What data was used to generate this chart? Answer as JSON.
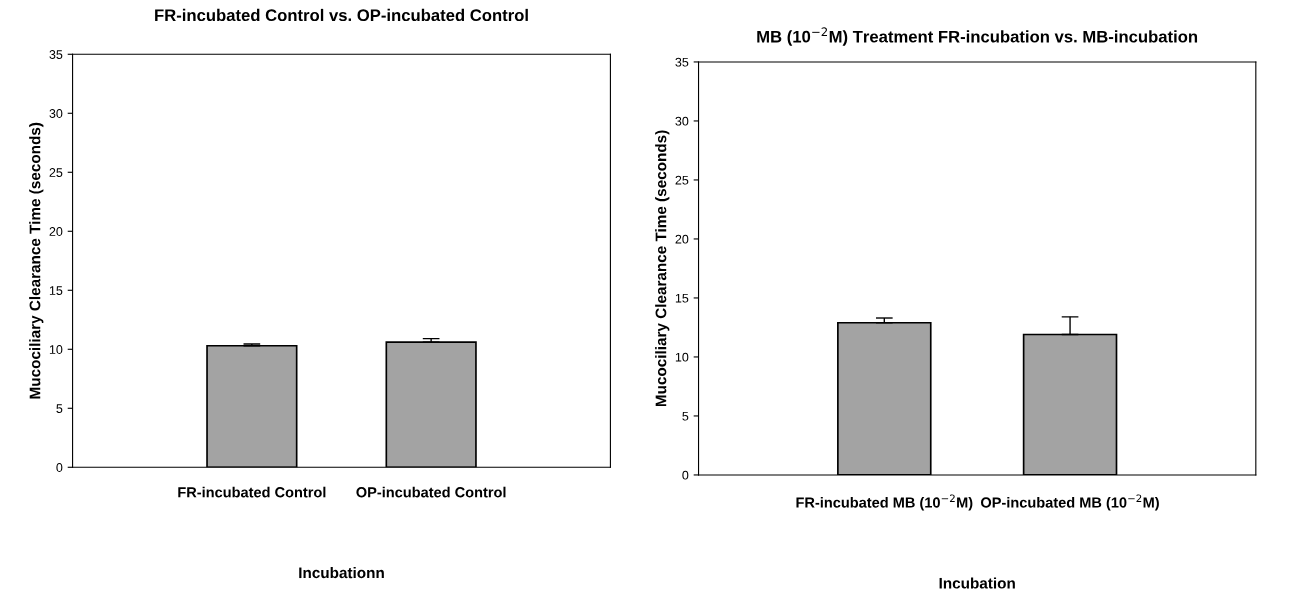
{
  "chart_data": [
    {
      "type": "bar",
      "title": "FR-incubated Control vs. OP-incubated Control",
      "xlabel": "Incubationn",
      "ylabel": "Mucociliary Clearance Time (seconds)",
      "categories": [
        "FR-incubated Control",
        "OP-incubated Control"
      ],
      "values": [
        10.3,
        10.6
      ],
      "errors": [
        [
          10.3,
          10.45
        ],
        [
          10.6,
          10.9
        ]
      ],
      "color": "#a3a3a3",
      "ylim": [
        0,
        35
      ],
      "yticks": [
        0,
        5,
        10,
        15,
        20,
        25,
        30,
        35
      ],
      "grid": false
    },
    {
      "type": "bar",
      "title": "MB (10$^{−2}$M) Treatment FR-incubation vs. MB-incubation",
      "xlabel": "Incubation",
      "ylabel": "Mucociliary Clearance Time (seconds)",
      "categories": [
        "FR-incubated MB (10$^{−2}$M)",
        "OP-incubated MB (10$^{−2}$M)"
      ],
      "values": [
        12.9,
        11.9
      ],
      "errors": [
        [
          12.9,
          13.3
        ],
        [
          11.9,
          13.4
        ]
      ],
      "color": "#a3a3a3",
      "ylim": [
        0,
        35
      ],
      "yticks": [
        0,
        5,
        10,
        15,
        20,
        25,
        30,
        35
      ],
      "grid": false
    }
  ]
}
